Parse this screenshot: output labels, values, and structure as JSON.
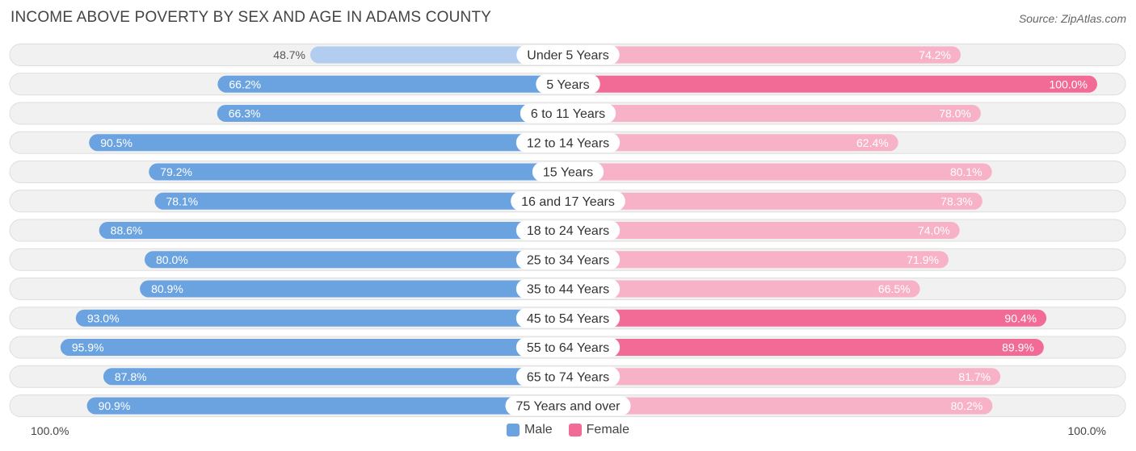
{
  "title": "INCOME ABOVE POVERTY BY SEX AND AGE IN ADAMS COUNTY",
  "source": "Source: ZipAtlas.com",
  "axis": {
    "left_label": "100.0%",
    "right_label": "100.0%"
  },
  "legend": {
    "male_label": "Male",
    "female_label": "Female"
  },
  "colors": {
    "male_dark": "#6aa3df",
    "male_light": "#b3cdf0",
    "female_dark": "#f26b96",
    "female_light": "#f7b2c8",
    "track": "#f1f1f1",
    "track_border": "#dedede"
  },
  "chart_data": {
    "type": "bar",
    "orientation": "horizontal-diverging",
    "xlim": [
      0,
      100
    ],
    "unit": "%",
    "categories": [
      "Under 5 Years",
      "5 Years",
      "6 to 11 Years",
      "12 to 14 Years",
      "15 Years",
      "16 and 17 Years",
      "18 to 24 Years",
      "25 to 34 Years",
      "35 to 44 Years",
      "45 to 54 Years",
      "55 to 64 Years",
      "65 to 74 Years",
      "75 Years and over"
    ],
    "series": [
      {
        "name": "Male",
        "values": [
          48.7,
          66.2,
          66.3,
          90.5,
          79.2,
          78.1,
          88.6,
          80.0,
          80.9,
          93.0,
          95.9,
          87.8,
          90.9
        ],
        "labels": [
          "48.7%",
          "66.2%",
          "66.3%",
          "90.5%",
          "79.2%",
          "78.1%",
          "88.6%",
          "80.0%",
          "80.9%",
          "93.0%",
          "95.9%",
          "87.8%",
          "90.9%"
        ]
      },
      {
        "name": "Female",
        "values": [
          74.2,
          100.0,
          78.0,
          62.4,
          80.1,
          78.3,
          74.0,
          71.9,
          66.5,
          90.4,
          89.9,
          81.7,
          80.2
        ],
        "labels": [
          "74.2%",
          "100.0%",
          "78.0%",
          "62.4%",
          "80.1%",
          "78.3%",
          "74.0%",
          "71.9%",
          "66.5%",
          "90.4%",
          "89.9%",
          "81.7%",
          "80.2%"
        ]
      }
    ]
  }
}
